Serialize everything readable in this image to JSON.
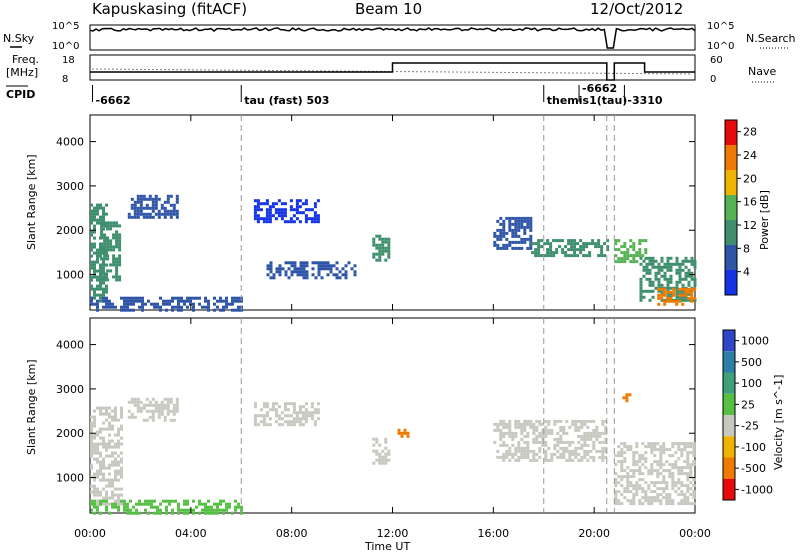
{
  "header": {
    "station": "Kapuskasing (fitACF)",
    "beam": "Beam 10",
    "date": "12/Oct/2012"
  },
  "top_panels": {
    "nsky_label": "N.Sky",
    "nsearch_label": "N.Search",
    "nsky_ticks": [
      "10^5",
      "10^0"
    ],
    "nsearch_ticks": [
      "10^5",
      "10^0"
    ],
    "freq_label": "Freq.",
    "freq_unit": "[MHz]",
    "freq_ticks": [
      "18",
      "8"
    ],
    "nave_label": "Nave",
    "nave_ticks": [
      "60",
      "0"
    ],
    "cpid_label": "CPID",
    "cpid_events": [
      {
        "time_h": 0.1,
        "text": "-6662"
      },
      {
        "time_h": 6.0,
        "text": "tau (fast) 503"
      },
      {
        "time_h": 18.0,
        "text": "themis1(tau)"
      },
      {
        "time_h": 19.4,
        "text": "-6662"
      },
      {
        "time_h": 21.2,
        "text": "-3310"
      }
    ]
  },
  "chart_data": [
    {
      "type": "heatmap",
      "title": "",
      "ylabel": "Slant Range [km]",
      "xlabel": "",
      "xlim": [
        0,
        24
      ],
      "ylim": [
        200,
        4600
      ],
      "yticks": [
        1000,
        2000,
        3000,
        4000
      ],
      "colorbar": {
        "label": "Power [dB]",
        "ticks": [
          4,
          8,
          12,
          16,
          20,
          24,
          28
        ],
        "range": [
          0,
          30
        ],
        "colors": [
          "#1433e6",
          "#2e55a8",
          "#3f8f6e",
          "#55b255",
          "#f0b400",
          "#f07a00",
          "#e60a0a"
        ]
      },
      "vlines_h": [
        6,
        18,
        20.5,
        20.8
      ],
      "regions": [
        {
          "t0": 0.0,
          "t1": 0.6,
          "r0": 400,
          "r1": 2600,
          "level": 10
        },
        {
          "t0": 0.4,
          "t1": 1.2,
          "r0": 900,
          "r1": 2200,
          "level": 9
        },
        {
          "t0": 1.5,
          "t1": 3.5,
          "r0": 2300,
          "r1": 2800,
          "level": 5
        },
        {
          "t0": 0.0,
          "t1": 6.0,
          "r0": 200,
          "r1": 500,
          "level": 6
        },
        {
          "t0": 6.5,
          "t1": 9.0,
          "r0": 2200,
          "r1": 2700,
          "level": 4
        },
        {
          "t0": 7.0,
          "t1": 10.5,
          "r0": 900,
          "r1": 1300,
          "level": 5
        },
        {
          "t0": 11.2,
          "t1": 11.9,
          "r0": 1300,
          "r1": 1900,
          "level": 12
        },
        {
          "t0": 16.0,
          "t1": 17.5,
          "r0": 1600,
          "r1": 2300,
          "level": 8
        },
        {
          "t0": 17.5,
          "t1": 20.5,
          "r0": 1400,
          "r1": 1800,
          "level": 12
        },
        {
          "t0": 20.8,
          "t1": 22.0,
          "r0": 1300,
          "r1": 1800,
          "level": 17
        },
        {
          "t0": 21.8,
          "t1": 24.0,
          "r0": 400,
          "r1": 1400,
          "level": 9
        },
        {
          "t0": 22.5,
          "t1": 24.0,
          "r0": 300,
          "r1": 700,
          "level": 24
        }
      ]
    },
    {
      "type": "heatmap",
      "title": "",
      "ylabel": "Slant Range [km]",
      "xlabel": "Time UT",
      "xlim": [
        0,
        24
      ],
      "ylim": [
        200,
        4600
      ],
      "xticks": [
        "00:00",
        "04:00",
        "08:00",
        "12:00",
        "16:00",
        "20:00",
        "00:00"
      ],
      "yticks": [
        1000,
        2000,
        3000,
        4000
      ],
      "colorbar": {
        "label": "Velocity [m s^-1]",
        "ticks": [
          "1000",
          "500",
          "100",
          "25",
          "-25",
          "-100",
          "-500",
          "-1000"
        ],
        "colors": [
          "#2e47c8",
          "#2e7fa8",
          "#3fa07a",
          "#55c044",
          "#c8c8c0",
          "#f0b400",
          "#f07a00",
          "#e60a0a"
        ]
      },
      "vlines_h": [
        6,
        18,
        20.5,
        20.8
      ],
      "regions": [
        {
          "t0": 0.0,
          "t1": 1.2,
          "r0": 400,
          "r1": 2600,
          "level": 4
        },
        {
          "t0": 1.5,
          "t1": 3.5,
          "r0": 2300,
          "r1": 2800,
          "level": 4
        },
        {
          "t0": 6.5,
          "t1": 9.0,
          "r0": 2200,
          "r1": 2700,
          "level": 4
        },
        {
          "t0": 11.2,
          "t1": 11.9,
          "r0": 1300,
          "r1": 1900,
          "level": 4
        },
        {
          "t0": 16.0,
          "t1": 20.5,
          "r0": 1400,
          "r1": 2300,
          "level": 4
        },
        {
          "t0": 20.8,
          "t1": 24.0,
          "r0": 400,
          "r1": 1800,
          "level": 4
        },
        {
          "t0": 0.0,
          "t1": 6.0,
          "r0": 200,
          "r1": 500,
          "level": 3
        },
        {
          "t0": 12.2,
          "t1": 12.6,
          "r0": 1900,
          "r1": 2100,
          "level": 6
        },
        {
          "t0": 21.0,
          "t1": 21.4,
          "r0": 2700,
          "r1": 2900,
          "level": 6
        }
      ]
    }
  ]
}
